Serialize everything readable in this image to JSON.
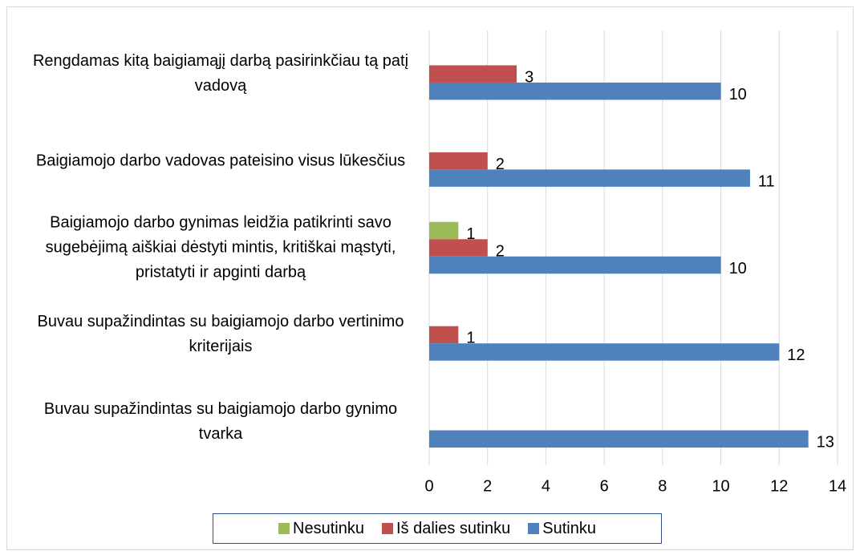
{
  "chart_data": {
    "type": "barh",
    "categories": [
      "Rengdamas kitą baigiamąjį darbą pasirinkčiau tą patį vadovą",
      "Baigiamojo darbo vadovas pateisino visus lūkesčius",
      "Baigiamojo darbo gynimas leidžia patikrinti savo sugebėjimą aiškiai dėstyti mintis, kritiškai mąstyti, pristatyti ir apginti darbą",
      "Buvau supažindintas su baigiamojo darbo vertinimo kriterijais",
      "Buvau supažindintas su baigiamojo darbo gynimo tvarka"
    ],
    "series": [
      {
        "name": "Nesutinku",
        "color": "#9bbb59",
        "values": [
          null,
          null,
          1,
          null,
          null
        ]
      },
      {
        "name": "Iš dalies sutinku",
        "color": "#c0504d",
        "values": [
          3,
          2,
          2,
          1,
          null
        ]
      },
      {
        "name": "Sutinku",
        "color": "#4f81bd",
        "values": [
          10,
          11,
          10,
          12,
          13
        ]
      }
    ],
    "xlim": [
      0,
      14
    ],
    "xticks": [
      0,
      2,
      4,
      6,
      8,
      10,
      12,
      14
    ],
    "grid": true,
    "legend": "bottom"
  }
}
